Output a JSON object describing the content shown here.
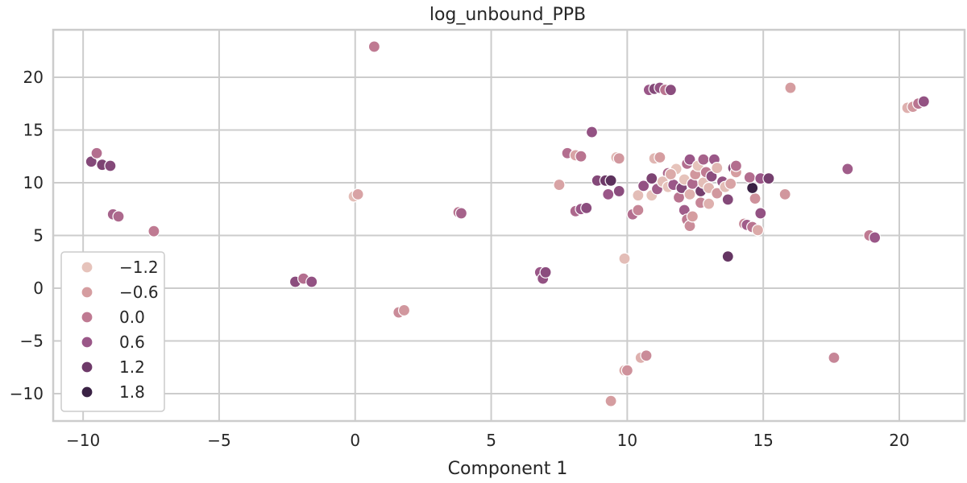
{
  "chart_data": {
    "type": "scatter",
    "title": "log_unbound_PPB",
    "xlabel": "Component 1",
    "ylabel": "",
    "xlim": [
      -11.1,
      22.4
    ],
    "ylim": [
      -12.6,
      24.5
    ],
    "xticks": [
      -10,
      -5,
      0,
      5,
      10,
      15,
      20
    ],
    "yticks": [
      -10,
      -5,
      0,
      5,
      10,
      15,
      20
    ],
    "xtick_labels": [
      "−10",
      "−5",
      "0",
      "5",
      "10",
      "15",
      "20"
    ],
    "ytick_labels": [
      "−10",
      "−5",
      "0",
      "5",
      "10",
      "15",
      "20"
    ],
    "grid": true,
    "legend_position": "lower-left",
    "legend": [
      {
        "label": "−1.2",
        "color": "#e6c3bb"
      },
      {
        "label": "−0.6",
        "color": "#d59da0"
      },
      {
        "label": "0.0",
        "color": "#bf7a92"
      },
      {
        "label": "0.6",
        "color": "#9a5788"
      },
      {
        "label": "1.2",
        "color": "#6e3a69"
      },
      {
        "label": "1.8",
        "color": "#3a2244"
      }
    ],
    "points": [
      {
        "x": 0.7,
        "y": 22.9,
        "c": 0.0
      },
      {
        "x": -9.7,
        "y": 12.0,
        "c": 0.9
      },
      {
        "x": -9.5,
        "y": 12.8,
        "c": 0.2
      },
      {
        "x": -9.3,
        "y": 11.7,
        "c": 1.0
      },
      {
        "x": -9.0,
        "y": 11.6,
        "c": 0.9
      },
      {
        "x": -8.9,
        "y": 7.0,
        "c": 0.4
      },
      {
        "x": -8.7,
        "y": 6.8,
        "c": 0.3
      },
      {
        "x": -7.4,
        "y": 5.4,
        "c": 0.0
      },
      {
        "x": -2.2,
        "y": 0.6,
        "c": 0.8
      },
      {
        "x": -1.9,
        "y": 0.9,
        "c": 0.2
      },
      {
        "x": -1.6,
        "y": 0.6,
        "c": 0.7
      },
      {
        "x": -0.05,
        "y": 8.7,
        "c": -1.1
      },
      {
        "x": 0.1,
        "y": 8.9,
        "c": -0.7
      },
      {
        "x": 1.6,
        "y": -2.3,
        "c": -0.3
      },
      {
        "x": 1.8,
        "y": -2.1,
        "c": -0.5
      },
      {
        "x": 3.8,
        "y": 7.2,
        "c": 0.1
      },
      {
        "x": 3.9,
        "y": 7.1,
        "c": 0.4
      },
      {
        "x": 6.8,
        "y": 1.5,
        "c": 0.6
      },
      {
        "x": 6.9,
        "y": 0.9,
        "c": 0.7
      },
      {
        "x": 7.0,
        "y": 1.5,
        "c": 0.8
      },
      {
        "x": 7.5,
        "y": 9.8,
        "c": -0.7
      },
      {
        "x": 7.8,
        "y": 12.8,
        "c": 0.2
      },
      {
        "x": 8.1,
        "y": 12.6,
        "c": -0.7
      },
      {
        "x": 8.3,
        "y": 12.5,
        "c": 0.1
      },
      {
        "x": 8.1,
        "y": 7.3,
        "c": 0.3
      },
      {
        "x": 8.3,
        "y": 7.5,
        "c": 0.6
      },
      {
        "x": 8.5,
        "y": 7.6,
        "c": 0.8
      },
      {
        "x": 8.7,
        "y": 14.8,
        "c": 0.7
      },
      {
        "x": 8.9,
        "y": 10.2,
        "c": 0.9
      },
      {
        "x": 9.2,
        "y": 10.2,
        "c": 1.2
      },
      {
        "x": 9.4,
        "y": 10.2,
        "c": 1.4
      },
      {
        "x": 9.3,
        "y": 8.9,
        "c": 0.6
      },
      {
        "x": 9.7,
        "y": 9.2,
        "c": 0.8
      },
      {
        "x": 9.6,
        "y": 12.4,
        "c": -1.0
      },
      {
        "x": 9.7,
        "y": 12.3,
        "c": -0.5
      },
      {
        "x": 9.4,
        "y": -10.7,
        "c": -0.6
      },
      {
        "x": 9.9,
        "y": 2.8,
        "c": -1.1
      },
      {
        "x": 9.9,
        "y": -7.8,
        "c": -0.8
      },
      {
        "x": 10.0,
        "y": -7.8,
        "c": -0.4
      },
      {
        "x": 10.5,
        "y": -6.6,
        "c": -0.9
      },
      {
        "x": 10.7,
        "y": -6.4,
        "c": -0.3
      },
      {
        "x": 10.2,
        "y": 7.0,
        "c": 0.2
      },
      {
        "x": 10.4,
        "y": 7.4,
        "c": -0.2
      },
      {
        "x": 10.4,
        "y": 8.8,
        "c": -1.1
      },
      {
        "x": 10.6,
        "y": 9.7,
        "c": 0.7
      },
      {
        "x": 10.9,
        "y": 8.8,
        "c": -1.2
      },
      {
        "x": 10.9,
        "y": 10.4,
        "c": 1.0
      },
      {
        "x": 11.1,
        "y": 9.4,
        "c": 0.5
      },
      {
        "x": 11.0,
        "y": 12.3,
        "c": -1.0
      },
      {
        "x": 11.2,
        "y": 12.4,
        "c": -0.6
      },
      {
        "x": 10.8,
        "y": 18.8,
        "c": 0.6
      },
      {
        "x": 11.0,
        "y": 18.9,
        "c": 0.9
      },
      {
        "x": 11.2,
        "y": 19.0,
        "c": 0.7
      },
      {
        "x": 11.4,
        "y": 18.8,
        "c": 0.1
      },
      {
        "x": 11.6,
        "y": 18.8,
        "c": 0.8
      },
      {
        "x": 11.5,
        "y": 10.9,
        "c": 0.3
      },
      {
        "x": 11.3,
        "y": 10.1,
        "c": -1.1
      },
      {
        "x": 11.5,
        "y": 9.6,
        "c": -1.2
      },
      {
        "x": 11.7,
        "y": 9.8,
        "c": 0.6
      },
      {
        "x": 11.8,
        "y": 11.3,
        "c": -1.2
      },
      {
        "x": 11.6,
        "y": 10.8,
        "c": -0.8
      },
      {
        "x": 11.9,
        "y": 8.6,
        "c": 0.1
      },
      {
        "x": 12.0,
        "y": 9.5,
        "c": 0.9
      },
      {
        "x": 12.1,
        "y": 10.3,
        "c": -1.2
      },
      {
        "x": 12.2,
        "y": 11.8,
        "c": 0.2
      },
      {
        "x": 12.3,
        "y": 12.2,
        "c": 0.6
      },
      {
        "x": 12.1,
        "y": 7.4,
        "c": 0.5
      },
      {
        "x": 12.2,
        "y": 6.5,
        "c": 0.0
      },
      {
        "x": 12.3,
        "y": 5.9,
        "c": -0.3
      },
      {
        "x": 12.4,
        "y": 6.8,
        "c": -0.6
      },
      {
        "x": 12.3,
        "y": 8.9,
        "c": -0.9
      },
      {
        "x": 12.4,
        "y": 9.9,
        "c": 0.3
      },
      {
        "x": 12.5,
        "y": 10.8,
        "c": -0.5
      },
      {
        "x": 12.6,
        "y": 11.6,
        "c": -1.2
      },
      {
        "x": 12.7,
        "y": 8.1,
        "c": -0.2
      },
      {
        "x": 12.7,
        "y": 9.2,
        "c": 1.1
      },
      {
        "x": 12.8,
        "y": 10.0,
        "c": -1.1
      },
      {
        "x": 12.8,
        "y": 12.2,
        "c": 0.4
      },
      {
        "x": 12.9,
        "y": 11.0,
        "c": 0.0
      },
      {
        "x": 13.0,
        "y": 9.5,
        "c": -1.0
      },
      {
        "x": 13.0,
        "y": 8.0,
        "c": -0.9
      },
      {
        "x": 13.1,
        "y": 10.6,
        "c": 0.8
      },
      {
        "x": 13.2,
        "y": 12.2,
        "c": 0.6
      },
      {
        "x": 13.3,
        "y": 11.4,
        "c": -1.0
      },
      {
        "x": 13.3,
        "y": 9.0,
        "c": -0.5
      },
      {
        "x": 13.5,
        "y": 10.1,
        "c": 0.7
      },
      {
        "x": 13.6,
        "y": 9.6,
        "c": -1.1
      },
      {
        "x": 13.7,
        "y": 8.4,
        "c": 0.9
      },
      {
        "x": 13.8,
        "y": 9.9,
        "c": -0.7
      },
      {
        "x": 13.9,
        "y": 11.4,
        "c": 0.9
      },
      {
        "x": 14.0,
        "y": 11.0,
        "c": -0.6
      },
      {
        "x": 14.0,
        "y": 11.6,
        "c": 0.2
      },
      {
        "x": 13.7,
        "y": 3.0,
        "c": 1.3
      },
      {
        "x": 14.3,
        "y": 6.1,
        "c": -0.2
      },
      {
        "x": 14.4,
        "y": 6.0,
        "c": 0.5
      },
      {
        "x": 14.6,
        "y": 5.8,
        "c": 0.1
      },
      {
        "x": 14.8,
        "y": 5.5,
        "c": -0.8
      },
      {
        "x": 14.7,
        "y": 8.5,
        "c": -0.4
      },
      {
        "x": 14.6,
        "y": 9.5,
        "c": 1.8
      },
      {
        "x": 14.5,
        "y": 10.5,
        "c": 0.2
      },
      {
        "x": 14.9,
        "y": 10.4,
        "c": 0.6
      },
      {
        "x": 14.9,
        "y": 7.1,
        "c": 0.7
      },
      {
        "x": 15.2,
        "y": 10.4,
        "c": 1.1
      },
      {
        "x": 15.8,
        "y": 8.9,
        "c": -0.5
      },
      {
        "x": 16.0,
        "y": 19.0,
        "c": -0.6
      },
      {
        "x": 17.6,
        "y": -6.6,
        "c": -0.2
      },
      {
        "x": 18.1,
        "y": 11.3,
        "c": 0.5
      },
      {
        "x": 18.9,
        "y": 5.0,
        "c": 0.0
      },
      {
        "x": 19.1,
        "y": 4.8,
        "c": 0.6
      },
      {
        "x": 20.3,
        "y": 17.1,
        "c": -0.9
      },
      {
        "x": 20.5,
        "y": 17.2,
        "c": -0.5
      },
      {
        "x": 20.7,
        "y": 17.5,
        "c": 0.1
      },
      {
        "x": 20.9,
        "y": 17.7,
        "c": 0.7
      }
    ]
  }
}
